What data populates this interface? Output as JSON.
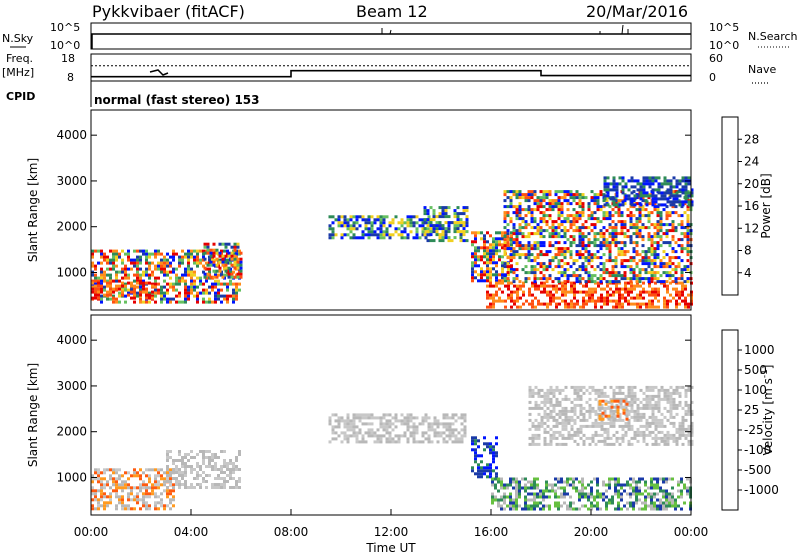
{
  "header": {
    "station": "Pykkvibaer (fitACF)",
    "beam": "Beam 12",
    "date": "20/Mar/2016"
  },
  "sky_panel": {
    "left_label": "N.Sky",
    "right_label": "N.Search",
    "left_ticks": [
      "10^5",
      "10^0"
    ],
    "right_ticks": [
      "10^5",
      "10^0"
    ]
  },
  "freq_panel": {
    "left_label_top": "Freq.",
    "left_label_unit": "[MHz]",
    "left_ticks": [
      "18",
      "8"
    ],
    "right_label": "Nave",
    "right_ticks": [
      "60",
      "0"
    ],
    "freq_steps": [
      {
        "t0": 0.0,
        "t1": 8.0,
        "freq_mhz": 9.6
      },
      {
        "t0": 8.0,
        "t1": 18.0,
        "freq_mhz": 11.8
      },
      {
        "t0": 18.0,
        "t1": 24.0,
        "freq_mhz": 10.0
      }
    ],
    "nave_level": 34
  },
  "cpid": {
    "label": "CPID",
    "text": "normal (fast stereo) 153"
  },
  "chart_data": [
    {
      "type": "heatmap",
      "name": "power",
      "ylabel": "Slant Range [km]",
      "xlim": [
        0,
        24
      ],
      "ylim": [
        180,
        4550
      ],
      "y_ticks": [
        "1000",
        "2000",
        "3000",
        "4000"
      ],
      "y_tick_values": [
        1000,
        2000,
        3000,
        4000
      ],
      "colorbar": {
        "label": "Power [dB]",
        "colors": [
          "#0014ff",
          "#1a3aa8",
          "#2e8b57",
          "#66c060",
          "#f0d020",
          "#ff8c1a",
          "#ff5010",
          "#e60000"
        ],
        "tick_labels": [
          "4",
          "8",
          "12",
          "16",
          "20",
          "24",
          "28"
        ]
      },
      "regions": [
        {
          "t0": 0.0,
          "t1": 6.0,
          "r0": 350,
          "r1": 1500,
          "level": "mixed"
        },
        {
          "t0": 0.0,
          "t1": 2.5,
          "r0": 450,
          "r1": 800,
          "level": "high"
        },
        {
          "t0": 4.5,
          "t1": 6.0,
          "r0": 900,
          "r1": 1650,
          "level": "mixed"
        },
        {
          "t0": 9.5,
          "t1": 13.5,
          "r0": 1750,
          "r1": 2250,
          "level": "medium"
        },
        {
          "t0": 13.3,
          "t1": 15.0,
          "r0": 1700,
          "r1": 2450,
          "level": "medium"
        },
        {
          "t0": 15.2,
          "t1": 16.8,
          "r0": 800,
          "r1": 1900,
          "level": "mixed"
        },
        {
          "t0": 15.8,
          "t1": 24.0,
          "r0": 250,
          "r1": 800,
          "level": "high"
        },
        {
          "t0": 16.5,
          "t1": 24.0,
          "r0": 800,
          "r1": 2800,
          "level": "mixed"
        },
        {
          "t0": 20.5,
          "t1": 24.0,
          "r0": 2500,
          "r1": 3100,
          "level": "low"
        }
      ]
    },
    {
      "type": "heatmap",
      "name": "velocity",
      "ylabel": "Slant Range [km]",
      "xlabel": "Time UT",
      "xlim": [
        0,
        24
      ],
      "ylim": [
        180,
        4550
      ],
      "x_ticks": [
        "00:00",
        "04:00",
        "08:00",
        "12:00",
        "16:00",
        "20:00",
        "00:00"
      ],
      "x_tick_values": [
        0,
        4,
        8,
        12,
        16,
        20,
        24
      ],
      "y_ticks": [
        "1000",
        "2000",
        "3000",
        "4000"
      ],
      "y_tick_values": [
        1000,
        2000,
        3000,
        4000
      ],
      "colorbar": {
        "label": "Velocity [m s",
        "label_exponent": "-1",
        "label_close": "]",
        "colors": [
          "#e60000",
          "#ff5a10",
          "#ff9a20",
          "#c8c8c8",
          "#b8b8b8",
          "#66c040",
          "#2e8b57",
          "#1a3aa8",
          "#0014ff"
        ],
        "tick_labels": [
          "1000",
          "500",
          "100",
          "25",
          "-25",
          "-100",
          "-500",
          "-1000"
        ]
      },
      "regions": [
        {
          "t0": 0.0,
          "t1": 3.3,
          "r0": 300,
          "r1": 1200,
          "level": "negative"
        },
        {
          "t0": 3.0,
          "t1": 6.0,
          "r0": 800,
          "r1": 1600,
          "level": "near-zero"
        },
        {
          "t0": 9.5,
          "t1": 15.0,
          "r0": 1800,
          "r1": 2400,
          "level": "near-zero"
        },
        {
          "t0": 15.2,
          "t1": 16.2,
          "r0": 1000,
          "r1": 1900,
          "level": "positive-high"
        },
        {
          "t0": 16.0,
          "t1": 24.0,
          "r0": 300,
          "r1": 1000,
          "level": "positive"
        },
        {
          "t0": 17.5,
          "t1": 24.0,
          "r0": 1700,
          "r1": 3000,
          "level": "near-zero"
        },
        {
          "t0": 20.3,
          "t1": 21.5,
          "r0": 2300,
          "r1": 2700,
          "level": "negative"
        }
      ]
    }
  ]
}
